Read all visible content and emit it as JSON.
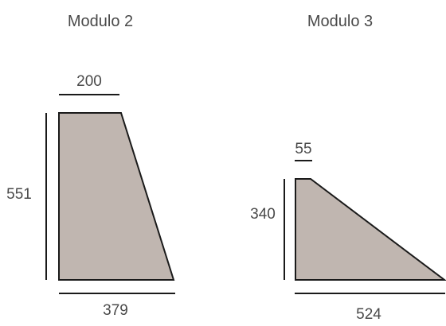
{
  "modules": [
    {
      "title": "Modulo 2",
      "top_width": "200",
      "height": "551",
      "bottom_width": "379"
    },
    {
      "title": "Modulo 3",
      "top_width": "55",
      "height": "340",
      "bottom_width": "524"
    }
  ],
  "colors": {
    "shape_fill": "#c0b6b0",
    "line": "#1a1a1a",
    "text": "#4a4a4a"
  }
}
